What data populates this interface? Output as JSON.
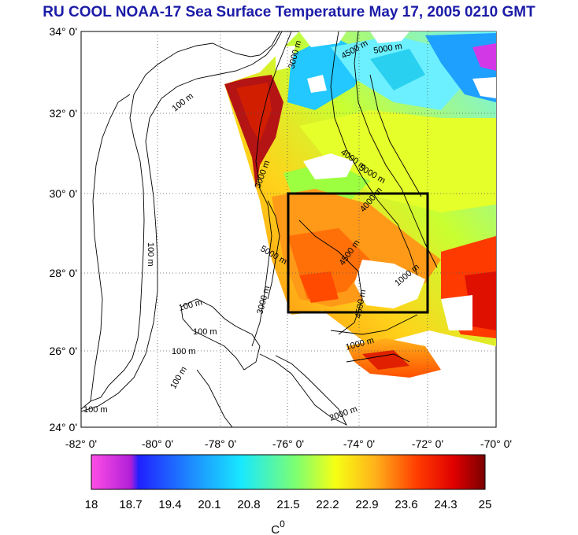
{
  "title": "RU COOL  NOAA-17 Sea Surface Temperature May 17, 2005 0210 GMT",
  "lat_labels": [
    "34° 0'",
    "32° 0'",
    "30° 0'",
    "28° 0'",
    "26° 0'",
    "24° 0'"
  ],
  "lon_labels": [
    "-82° 0'",
    "-80° 0'",
    "-78° 0'",
    "-76° 0'",
    "-74° 0'",
    "-72° 0'",
    "-70° 0'"
  ],
  "colorbar": {
    "ticks": [
      "18",
      "18.7",
      "19.4",
      "20.1",
      "20.8",
      "21.5",
      "22.2",
      "22.9",
      "23.6",
      "24.3",
      "25"
    ],
    "unit": "C",
    "unit_sup": "0",
    "min": 18,
    "max": 25
  },
  "contour_labels": [
    {
      "text": "100 m"
    },
    {
      "text": "100 m"
    },
    {
      "text": "100 m"
    },
    {
      "text": "100 m"
    },
    {
      "text": "100 m"
    },
    {
      "text": "100 m"
    },
    {
      "text": "100 m"
    },
    {
      "text": "3000 m"
    },
    {
      "text": "3000 m"
    },
    {
      "text": "3000 m"
    },
    {
      "text": "4000 m"
    },
    {
      "text": "4000 m"
    },
    {
      "text": "4500 m"
    },
    {
      "text": "4500 m"
    },
    {
      "text": "4500 m"
    },
    {
      "text": "5000 m"
    },
    {
      "text": "5000 m"
    },
    {
      "text": "5000 m"
    },
    {
      "text": "1000 m"
    },
    {
      "text": "1000 m"
    },
    {
      "text": "2000 m"
    }
  ],
  "region_box": {
    "lon_min": -76,
    "lon_max": -72,
    "lat_min": 27,
    "lat_max": 30
  },
  "colors": {
    "title": "#1b1ba8",
    "box": "#000000",
    "grid": "#555555"
  }
}
